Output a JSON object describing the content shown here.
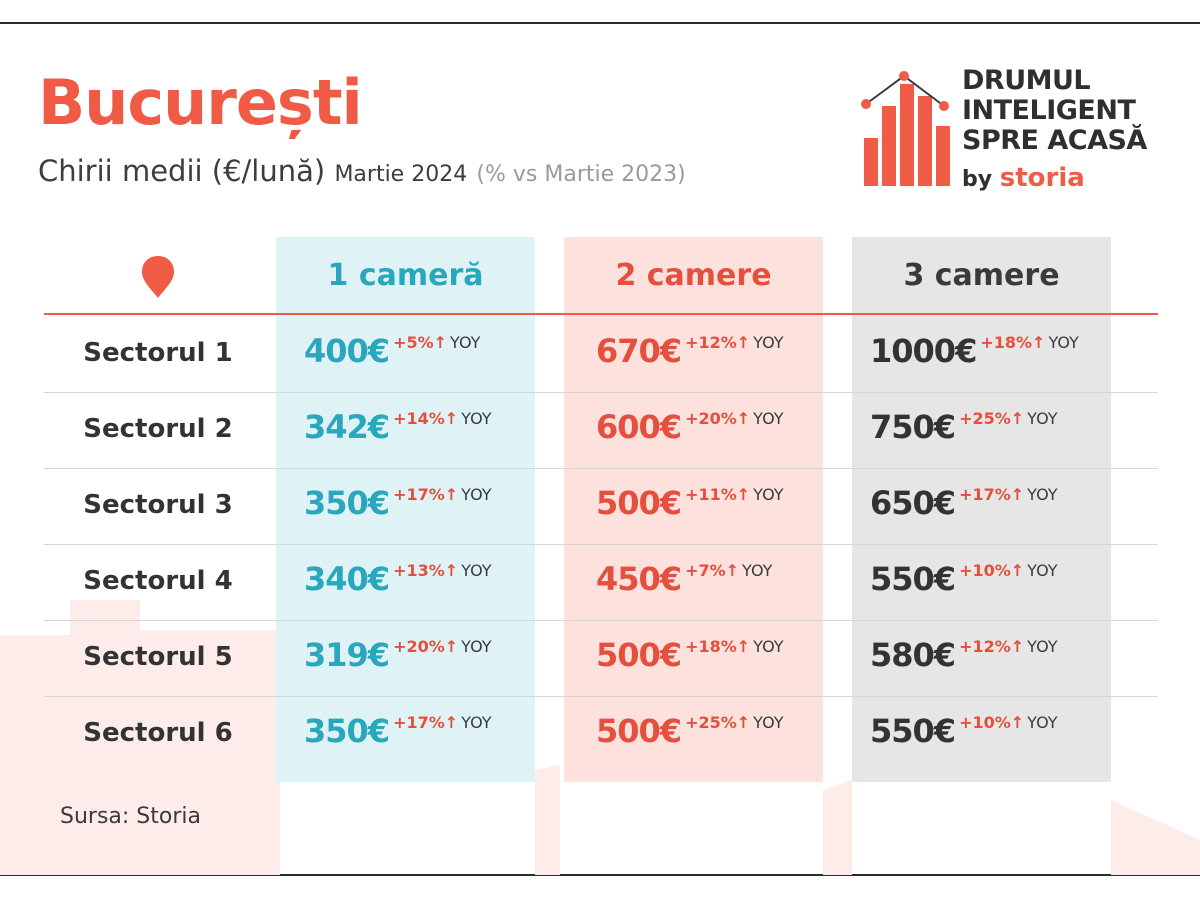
{
  "header": {
    "title": "București",
    "subtitle": "Chirii medii (€/lună)",
    "period": "Martie 2024",
    "comparison": "(% vs Martie 2023)"
  },
  "logo": {
    "line1": "DRUMUL",
    "line2": "INTELIGENT",
    "line3": "SPRE ACASĂ",
    "by": "by",
    "brand": "storia"
  },
  "colors": {
    "accent": "#ef5b45",
    "col1": "#2aa6bd",
    "col2": "#e4503d",
    "col3": "#333333"
  },
  "icons": {
    "location": "location-pin-icon"
  },
  "chart_data": {
    "type": "table",
    "columns": [
      "1 cameră",
      "2 camere",
      "3 camere"
    ],
    "change_suffix": "YOY",
    "rows": [
      {
        "label": "Sectorul 1",
        "cells": [
          {
            "price": "400€",
            "change": "+5%↑"
          },
          {
            "price": "670€",
            "change": "+12%↑"
          },
          {
            "price": "1000€",
            "change": "+18%↑"
          }
        ]
      },
      {
        "label": "Sectorul 2",
        "cells": [
          {
            "price": "342€",
            "change": "+14%↑"
          },
          {
            "price": "600€",
            "change": "+20%↑"
          },
          {
            "price": "750€",
            "change": "+25%↑"
          }
        ]
      },
      {
        "label": "Sectorul 3",
        "cells": [
          {
            "price": "350€",
            "change": "+17%↑"
          },
          {
            "price": "500€",
            "change": "+11%↑"
          },
          {
            "price": "650€",
            "change": "+17%↑"
          }
        ]
      },
      {
        "label": "Sectorul 4",
        "cells": [
          {
            "price": "340€",
            "change": "+13%↑"
          },
          {
            "price": "450€",
            "change": "+7%↑"
          },
          {
            "price": "550€",
            "change": "+10%↑"
          }
        ]
      },
      {
        "label": "Sectorul 5",
        "cells": [
          {
            "price": "319€",
            "change": "+20%↑"
          },
          {
            "price": "500€",
            "change": "+18%↑"
          },
          {
            "price": "580€",
            "change": "+12%↑"
          }
        ]
      },
      {
        "label": "Sectorul 6",
        "cells": [
          {
            "price": "350€",
            "change": "+17%↑"
          },
          {
            "price": "500€",
            "change": "+25%↑"
          },
          {
            "price": "550€",
            "change": "+10%↑"
          }
        ]
      }
    ]
  },
  "footer": {
    "source": "Sursa: Storia"
  }
}
